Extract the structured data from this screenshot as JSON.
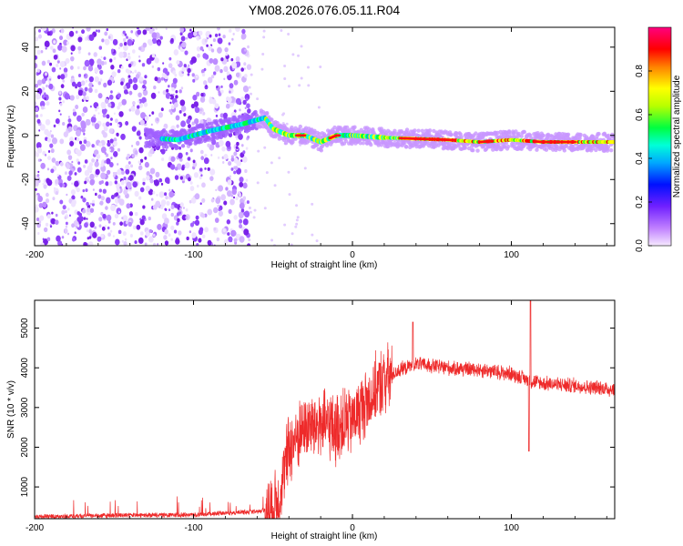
{
  "chart_data": [
    {
      "type": "heatmap",
      "title": "YM08.2026.076.05.11.R04",
      "xlabel": "Height of straight line (km)",
      "ylabel": "Frequency (Hz)",
      "xlim": [
        -200,
        165
      ],
      "ylim": [
        -50,
        49
      ],
      "xticks": [
        "-200",
        "-100",
        "0",
        "100"
      ],
      "yticks": [
        "-40",
        "-20",
        "0",
        "20",
        "40"
      ],
      "colorbar": {
        "label": "Normalized spectral amplitude",
        "range": [
          0.0,
          1.0
        ],
        "ticks": [
          "0.0",
          "0.2",
          "0.4",
          "0.6",
          "0.8"
        ]
      },
      "ridge": {
        "description_points_x": [
          -200,
          -150,
          -110,
          -90,
          -70,
          -55,
          -50,
          -40,
          -30,
          -20,
          -10,
          0,
          20,
          60,
          80,
          100,
          120,
          165
        ],
        "description_points_y": [
          0,
          0,
          -2,
          2,
          5,
          8,
          3,
          0,
          0,
          -3,
          0,
          0,
          -1,
          -2,
          -3,
          -2,
          -3,
          -3
        ]
      }
    },
    {
      "type": "line",
      "xlabel": "Height of straight line (km)",
      "ylabel": "SNR (10 * v/v)",
      "xlim": [
        -200,
        165
      ],
      "ylim": [
        200,
        5700
      ],
      "xticks": [
        "-200",
        "-100",
        "0",
        "100"
      ],
      "yticks": [
        "1000",
        "2000",
        "3000",
        "4000",
        "5000"
      ],
      "series": [
        {
          "name": "SNR",
          "color": "#ee2a2a",
          "x_knots": [
            -200,
            -150,
            -100,
            -60,
            -50,
            -45,
            -40,
            -30,
            -20,
            -10,
            0,
            10,
            20,
            30,
            40,
            60,
            80,
            100,
            110,
            120,
            140,
            165
          ],
          "y_knots": [
            250,
            280,
            300,
            380,
            450,
            900,
            2000,
            2500,
            2600,
            2500,
            2700,
            3200,
            3700,
            3950,
            4100,
            4000,
            3950,
            3850,
            3700,
            3600,
            3550,
            3450
          ],
          "spikes": [
            {
              "x": 38,
              "y": 5150
            },
            {
              "x": 112,
              "y": 5700
            },
            {
              "x": 111,
              "y": 1900
            }
          ]
        }
      ]
    }
  ]
}
